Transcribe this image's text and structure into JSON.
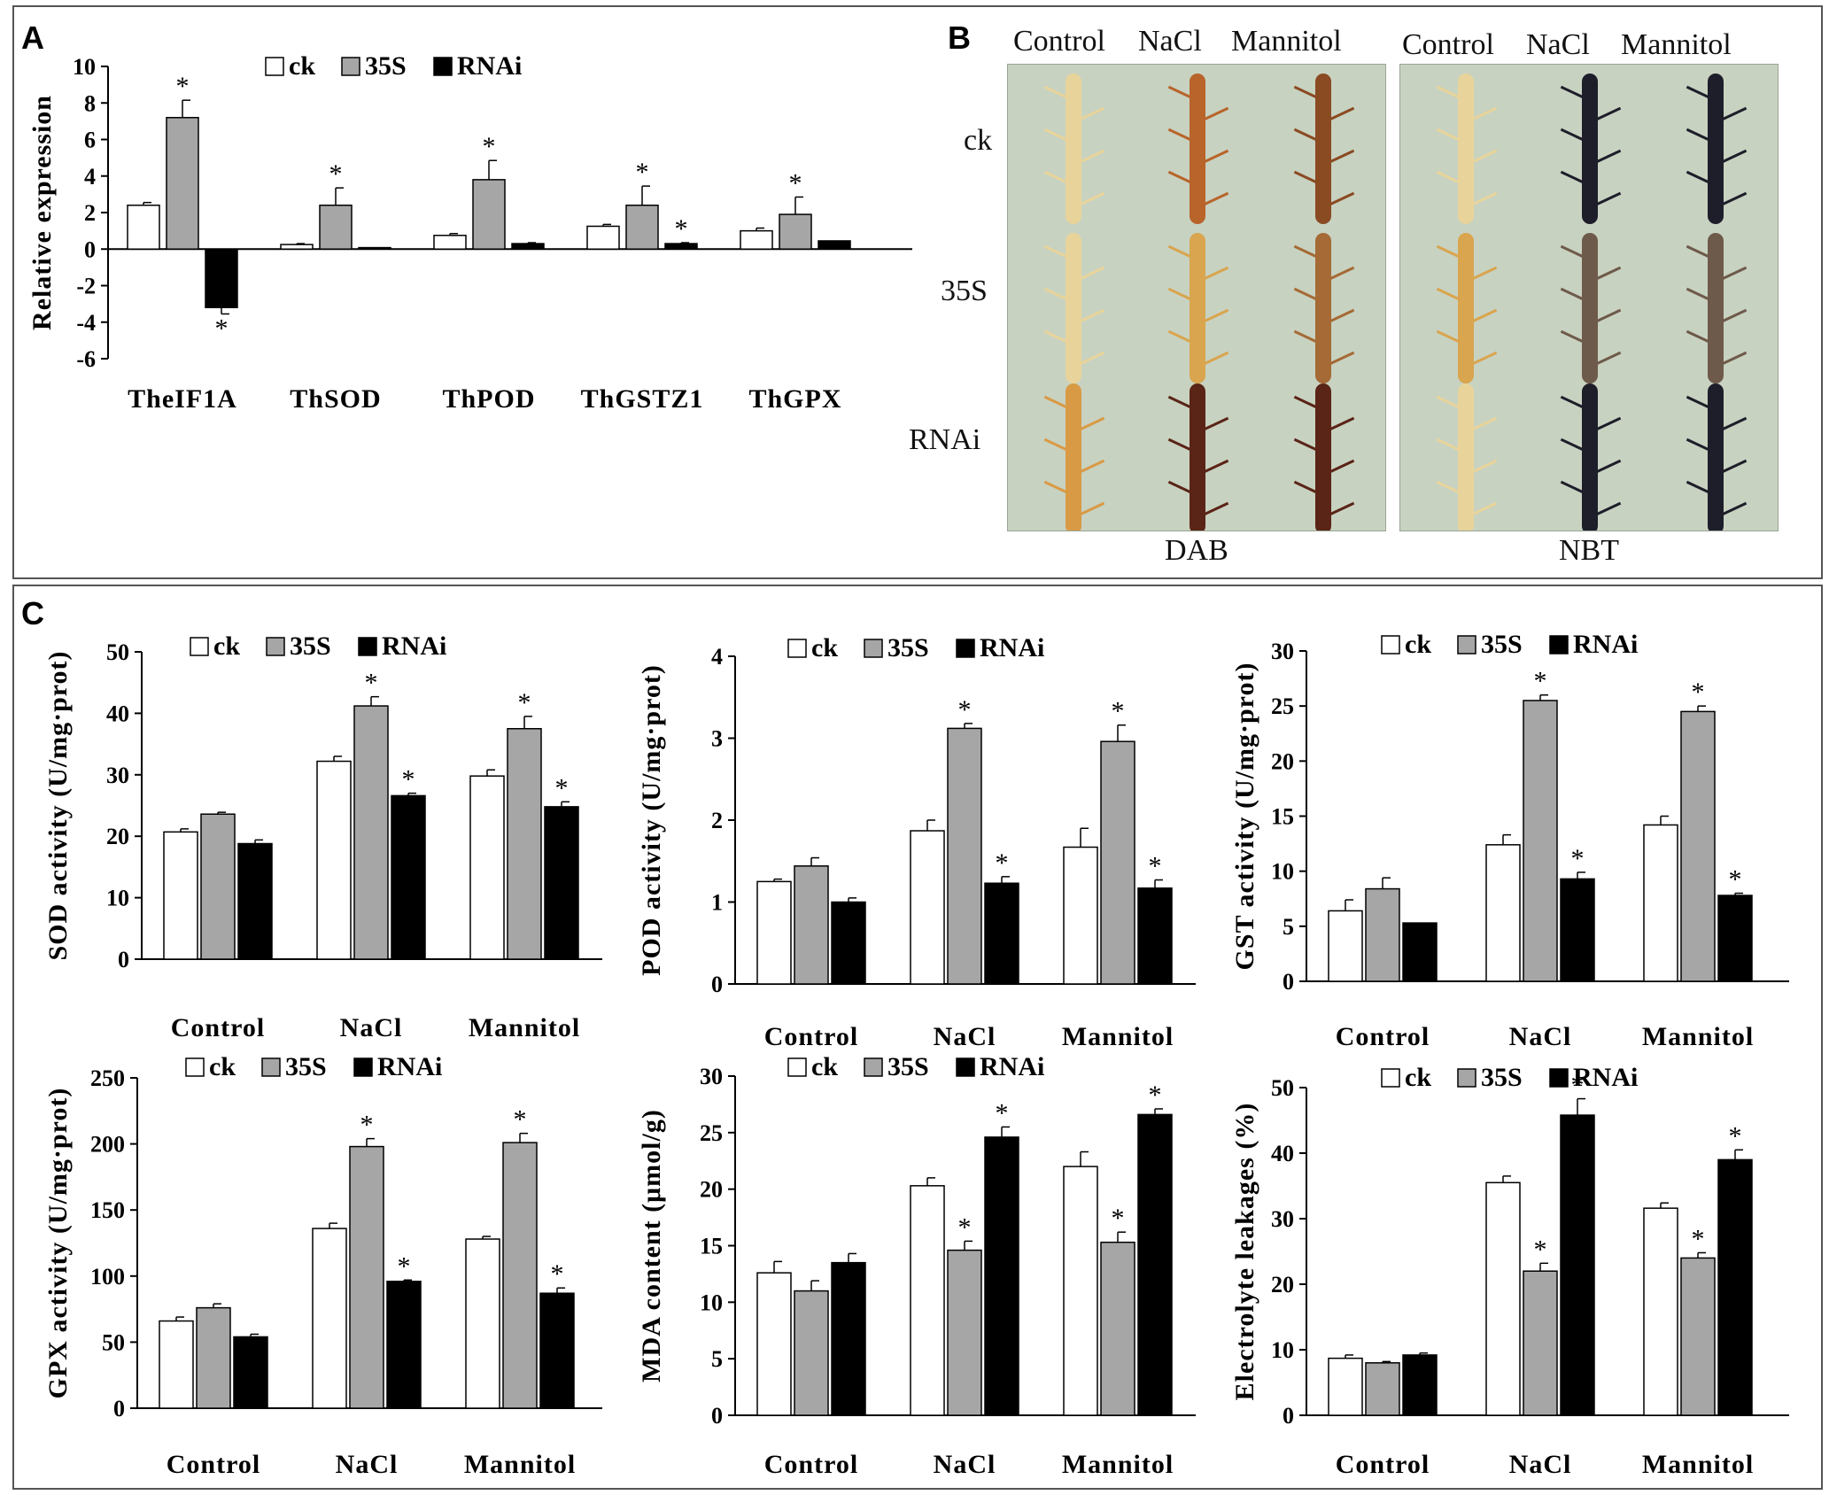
{
  "panels": {
    "a": {
      "letter": "A"
    },
    "b": {
      "letter": "B",
      "col_headers": [
        "Control",
        "NaCl",
        "Mannitol"
      ],
      "row_labels": [
        "ck",
        "35S",
        "RNAi"
      ],
      "stains": [
        "DAB",
        "NBT"
      ],
      "root_color_names": {
        "DAB": [
          [
            "pale-yellow",
            "brown-orange",
            "brown"
          ],
          [
            "pale-yellow",
            "yellow-orange",
            "orange-brown"
          ],
          [
            "orange-yellow",
            "dark-brown",
            "dark-brown"
          ]
        ],
        "NBT": [
          [
            "pale-yellow",
            "dark-blue",
            "dark-blue"
          ],
          [
            "yellow-orange",
            "grey-brown",
            "grey-brown"
          ],
          [
            "pale-yellow",
            "dark-blue",
            "dark-blue"
          ]
        ]
      },
      "colors": {
        "pale-yellow": "#e8d49a",
        "brown-orange": "#b8642a",
        "brown": "#8a4a22",
        "yellow-orange": "#d9a54e",
        "orange-brown": "#a56a35",
        "orange-yellow": "#d99a45",
        "dark-brown": "#5a2416",
        "dark-blue": "#1e1e2a",
        "grey-brown": "#6e5a4a"
      }
    },
    "c": {
      "letter": "C"
    }
  },
  "legend": [
    "ck",
    "35S",
    "RNAi"
  ],
  "series_colors": {
    "ck": "#ffffff",
    "35S": "#a6a6a6",
    "RNAi": "#000000"
  },
  "chart_data": [
    {
      "id": "A",
      "type": "bar",
      "xlabel": "",
      "ylabel": "Relative expression",
      "categories": [
        "TheIF1A",
        "ThSOD",
        "ThPOD",
        "ThGSTZ1",
        "ThGPX"
      ],
      "ylim": [
        -6,
        10
      ],
      "yticks": [
        10,
        8,
        6,
        4,
        2,
        0,
        -2,
        -4,
        -6
      ],
      "series": [
        {
          "name": "ck",
          "values": [
            2.4,
            0.25,
            0.75,
            1.25,
            1.0
          ],
          "errors": [
            0.15,
            0.05,
            0.1,
            0.1,
            0.15
          ],
          "stars": [
            "",
            "",
            "",
            "",
            ""
          ]
        },
        {
          "name": "35S",
          "values": [
            7.2,
            2.4,
            3.8,
            2.4,
            1.9
          ],
          "errors": [
            0.95,
            0.95,
            1.05,
            1.05,
            0.95
          ],
          "stars": [
            "*",
            "*",
            "*",
            "*",
            "*"
          ]
        },
        {
          "name": "RNAi",
          "values": [
            -3.2,
            0.08,
            0.3,
            0.3,
            0.45
          ],
          "errors": [
            0.35,
            0.0,
            0.05,
            0.05,
            0.0
          ],
          "stars": [
            "*",
            "",
            "",
            "*",
            ""
          ]
        }
      ]
    },
    {
      "id": "C-SOD",
      "type": "bar",
      "ylabel": "SOD activity (U/mg·prot)",
      "categories": [
        "Control",
        "NaCl",
        "Mannitol"
      ],
      "ylim": [
        0,
        50
      ],
      "yticks": [
        50,
        40,
        30,
        20,
        10,
        0
      ],
      "series": [
        {
          "name": "ck",
          "values": [
            20.7,
            32.2,
            29.8
          ],
          "errors": [
            0.5,
            0.8,
            1.0
          ],
          "stars": [
            "",
            "",
            ""
          ]
        },
        {
          "name": "35S",
          "values": [
            23.6,
            41.2,
            37.5
          ],
          "errors": [
            0.3,
            1.5,
            2.0
          ],
          "stars": [
            "",
            "*",
            "*"
          ]
        },
        {
          "name": "RNAi",
          "values": [
            18.8,
            26.6,
            24.8
          ],
          "errors": [
            0.6,
            0.4,
            0.8
          ],
          "stars": [
            "",
            "*",
            "*"
          ]
        }
      ]
    },
    {
      "id": "C-POD",
      "type": "bar",
      "ylabel": "POD activity (U/mg·prot)",
      "categories": [
        "Control",
        "NaCl",
        "Mannitol"
      ],
      "ylim": [
        0,
        4
      ],
      "yticks": [
        4,
        3,
        2,
        1,
        0
      ],
      "series": [
        {
          "name": "ck",
          "values": [
            1.25,
            1.87,
            1.67
          ],
          "errors": [
            0.03,
            0.13,
            0.23
          ],
          "stars": [
            "",
            "",
            ""
          ]
        },
        {
          "name": "35S",
          "values": [
            1.44,
            3.12,
            2.96
          ],
          "errors": [
            0.1,
            0.06,
            0.2
          ],
          "stars": [
            "",
            "*",
            "*"
          ]
        },
        {
          "name": "RNAi",
          "values": [
            1.0,
            1.23,
            1.17
          ],
          "errors": [
            0.05,
            0.08,
            0.1
          ],
          "stars": [
            "",
            "*",
            "*"
          ]
        }
      ]
    },
    {
      "id": "C-GST",
      "type": "bar",
      "ylabel": "GST activity (U/mg·prot)",
      "categories": [
        "Control",
        "NaCl",
        "Mannitol"
      ],
      "ylim": [
        0,
        30
      ],
      "yticks": [
        30,
        25,
        20,
        15,
        10,
        5,
        0
      ],
      "series": [
        {
          "name": "ck",
          "values": [
            6.4,
            12.4,
            14.2
          ],
          "errors": [
            1.0,
            0.9,
            0.8
          ],
          "stars": [
            "",
            "",
            ""
          ]
        },
        {
          "name": "35S",
          "values": [
            8.4,
            25.5,
            24.5
          ],
          "errors": [
            1.0,
            0.5,
            0.5
          ],
          "stars": [
            "",
            "*",
            "*"
          ]
        },
        {
          "name": "RNAi",
          "values": [
            5.3,
            9.3,
            7.8
          ],
          "errors": [
            0.0,
            0.6,
            0.2
          ],
          "stars": [
            "",
            "*",
            "*"
          ]
        }
      ]
    },
    {
      "id": "C-GPX",
      "type": "bar",
      "ylabel": "GPX activity (U/mg·prot)",
      "categories": [
        "Control",
        "NaCl",
        "Mannitol"
      ],
      "ylim": [
        0,
        250
      ],
      "yticks": [
        250,
        200,
        150,
        100,
        50,
        0
      ],
      "series": [
        {
          "name": "ck",
          "values": [
            66,
            136,
            128
          ],
          "errors": [
            3,
            4,
            2
          ],
          "stars": [
            "",
            "",
            ""
          ]
        },
        {
          "name": "35S",
          "values": [
            76,
            198,
            201
          ],
          "errors": [
            3,
            6,
            7
          ],
          "stars": [
            "",
            "*",
            "*"
          ]
        },
        {
          "name": "RNAi",
          "values": [
            54,
            96,
            87
          ],
          "errors": [
            2,
            1,
            4
          ],
          "stars": [
            "",
            "*",
            "*"
          ]
        }
      ]
    },
    {
      "id": "C-MDA",
      "type": "bar",
      "ylabel": "MDA content (μmol/g)",
      "categories": [
        "Control",
        "NaCl",
        "Mannitol"
      ],
      "ylim": [
        0,
        30
      ],
      "yticks": [
        30,
        25,
        20,
        15,
        10,
        5,
        0
      ],
      "series": [
        {
          "name": "ck",
          "values": [
            12.6,
            20.3,
            22.0
          ],
          "errors": [
            1.0,
            0.7,
            1.3
          ],
          "stars": [
            "",
            "",
            ""
          ]
        },
        {
          "name": "35S",
          "values": [
            11.0,
            14.6,
            15.3
          ],
          "errors": [
            0.9,
            0.8,
            0.9
          ],
          "stars": [
            "",
            "*",
            "*"
          ]
        },
        {
          "name": "RNAi",
          "values": [
            13.5,
            24.6,
            26.6
          ],
          "errors": [
            0.8,
            0.9,
            0.5
          ],
          "stars": [
            "",
            "*",
            "*"
          ]
        }
      ]
    },
    {
      "id": "C-EL",
      "type": "bar",
      "ylabel": "Electrolyte leakages (%)",
      "categories": [
        "Control",
        "NaCl",
        "Mannitol"
      ],
      "ylim": [
        0,
        50
      ],
      "yticks": [
        50,
        40,
        30,
        20,
        10,
        0
      ],
      "series": [
        {
          "name": "ck",
          "values": [
            8.7,
            35.5,
            31.6
          ],
          "errors": [
            0.5,
            1.0,
            0.8
          ],
          "stars": [
            "",
            "",
            ""
          ]
        },
        {
          "name": "35S",
          "values": [
            8.0,
            22.0,
            24.0
          ],
          "errors": [
            0.2,
            1.2,
            0.8
          ],
          "stars": [
            "",
            "*",
            "*"
          ]
        },
        {
          "name": "RNAi",
          "values": [
            9.2,
            45.8,
            39.0
          ],
          "errors": [
            0.3,
            2.5,
            1.5
          ],
          "stars": [
            "",
            "*",
            "*"
          ]
        }
      ]
    }
  ]
}
